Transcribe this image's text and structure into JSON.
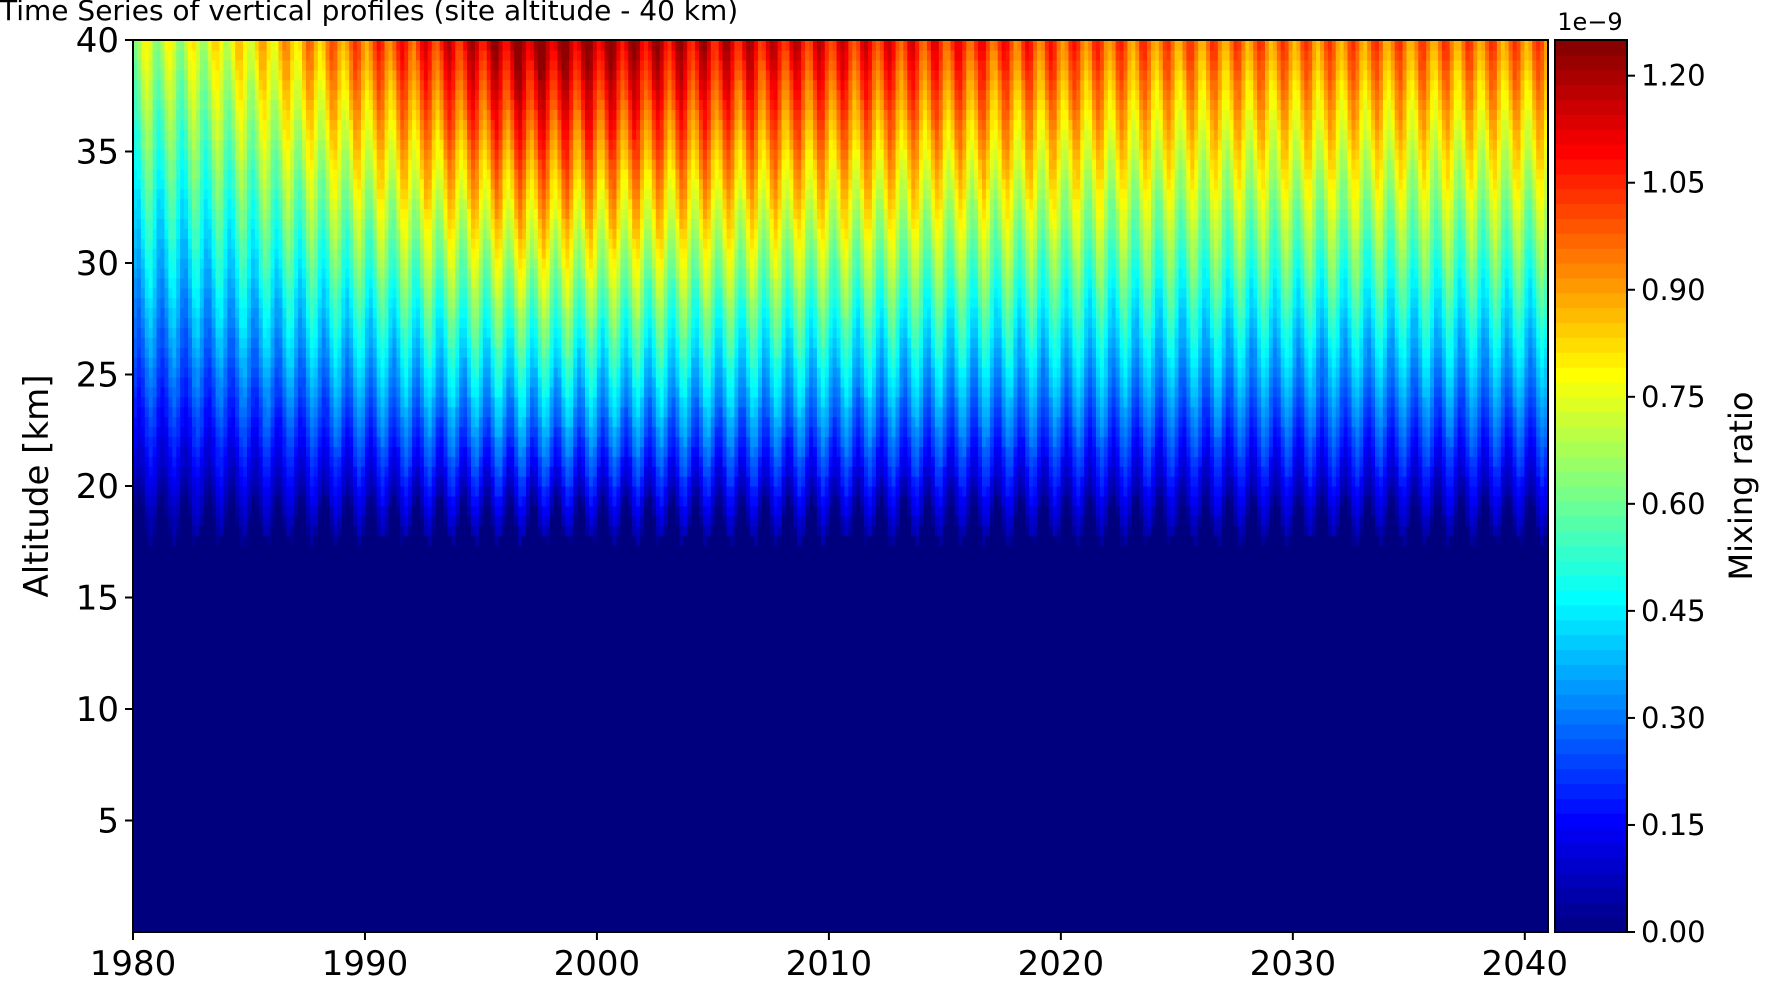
{
  "chart_data": {
    "type": "heatmap",
    "title": "Time Series of vertical profiles (site altitude - 40 km)",
    "xlabel": "",
    "ylabel": "Altitude [km]",
    "xlim": [
      1980,
      2041
    ],
    "ylim": [
      0,
      40
    ],
    "x_ticks": [
      "1980",
      "1990",
      "2000",
      "2010",
      "2020",
      "2030",
      "2040"
    ],
    "y_ticks": [
      "5",
      "10",
      "15",
      "20",
      "25",
      "30",
      "35",
      "40"
    ],
    "colorbar": {
      "label": "Mixing ratio",
      "offset_text": "1e−9",
      "ticks": [
        "0.00",
        "0.15",
        "0.30",
        "0.45",
        "0.60",
        "0.75",
        "0.90",
        "1.05",
        "1.20"
      ],
      "range": [
        0.0,
        1.25
      ],
      "colormap": "jet",
      "colors": [
        "#00007f",
        "#0000ff",
        "#007fff",
        "#00ffff",
        "#7fff7f",
        "#ffff00",
        "#ff7f00",
        "#ff0000",
        "#7f0000"
      ]
    },
    "description_values": {
      "low_layer_value": 0.0,
      "low_layer_top_km": 17.5,
      "peak_value": 1.25,
      "peak_period": [
        1994,
        2002
      ],
      "seasonal_cycle": true
    }
  }
}
